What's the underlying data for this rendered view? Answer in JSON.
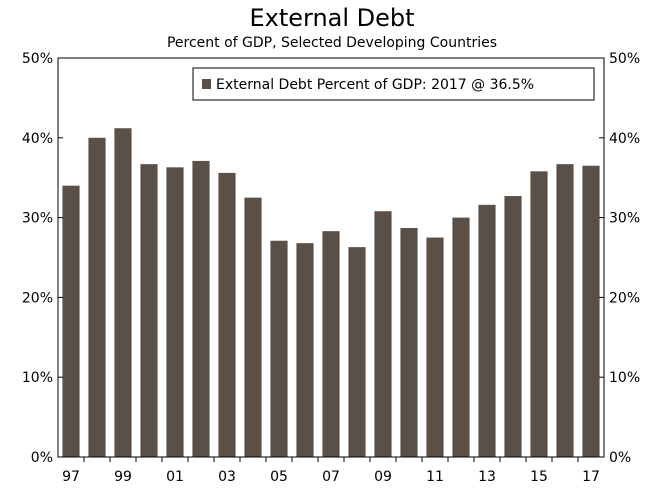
{
  "chart_data": {
    "type": "bar",
    "title": "External Debt",
    "subtitle": "Percent of GDP, Selected Developing Countries",
    "categories": [
      "97",
      "98",
      "99",
      "00",
      "01",
      "02",
      "03",
      "04",
      "05",
      "06",
      "07",
      "08",
      "09",
      "10",
      "11",
      "12",
      "13",
      "14",
      "15",
      "16",
      "17"
    ],
    "x_tick_labels": [
      "97",
      "",
      "99",
      "",
      "01",
      "",
      "03",
      "",
      "05",
      "",
      "07",
      "",
      "09",
      "",
      "11",
      "",
      "13",
      "",
      "15",
      "",
      "17"
    ],
    "series": [
      {
        "name": "External Debt Percent of GDP: 2017 @ 36.5%",
        "values": [
          34.0,
          40.0,
          41.2,
          36.7,
          36.3,
          37.1,
          35.6,
          32.5,
          27.1,
          26.8,
          28.3,
          26.3,
          30.8,
          28.7,
          27.5,
          30.0,
          31.6,
          32.7,
          35.8,
          36.7,
          36.5
        ]
      }
    ],
    "y_ticks": [
      0,
      10,
      20,
      30,
      40,
      50
    ],
    "y_tick_labels": [
      "0%",
      "10%",
      "20%",
      "30%",
      "40%",
      "50%"
    ],
    "ylim": [
      0,
      50
    ],
    "y_axis_right": true,
    "grid": false,
    "legend_position": "top-right",
    "bar_color": "#5b5047",
    "xlabel": "",
    "ylabel": ""
  }
}
